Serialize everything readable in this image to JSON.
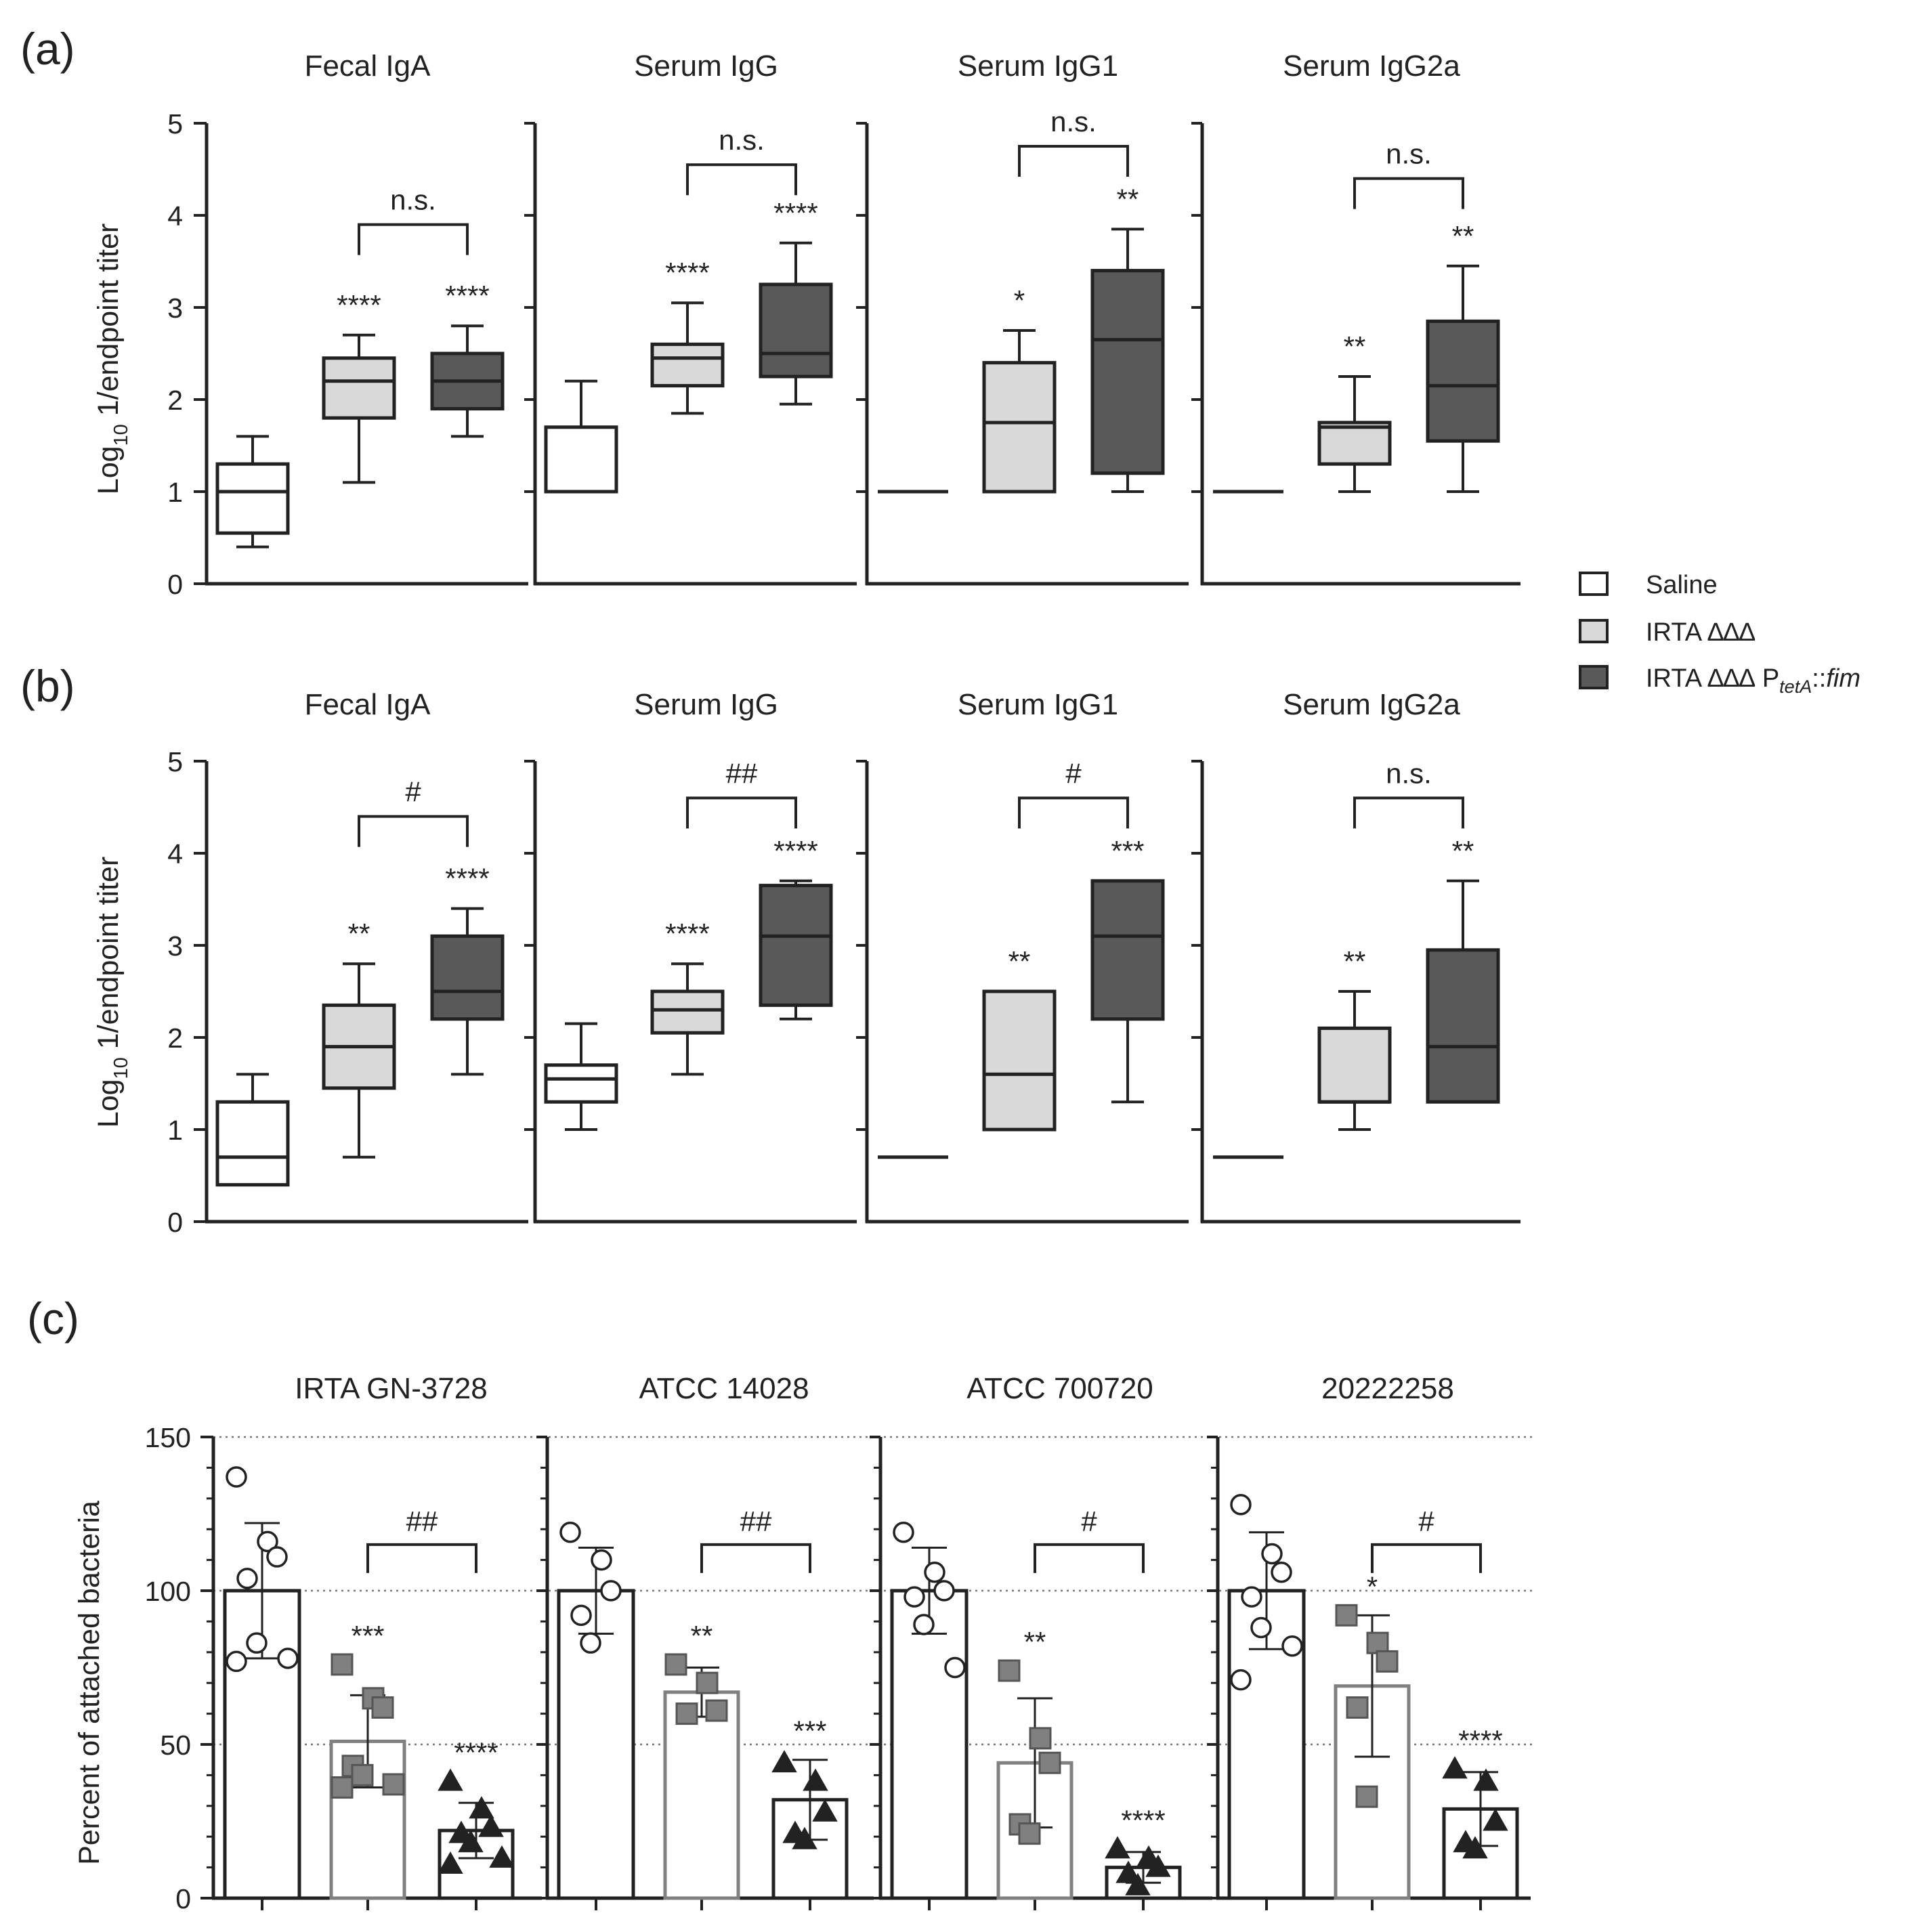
{
  "legend": {
    "items": [
      {
        "id": "saline",
        "label": "Saline",
        "color": "#ffffff"
      },
      {
        "id": "delta",
        "label": "IRTA ∆∆∆",
        "color": "#d9d9d9"
      },
      {
        "id": "fim",
        "label": "IRTA ∆∆∆ P",
        "sub": "tetA",
        "suffix": "::",
        "suffix_it": "fim",
        "color": "#595959"
      }
    ]
  },
  "chart_data": [
    {
      "id": "a",
      "letter": "(a)",
      "type": "box",
      "ylabel": "Log",
      "ylabel_sub": "10",
      "ylabel_rest": " 1/endpoint titer",
      "ylim": [
        0,
        5
      ],
      "yticks": [
        "0",
        "1",
        "2",
        "3",
        "4",
        "5"
      ],
      "panels": [
        {
          "title": "Fecal IgA",
          "boxes": [
            {
              "group": "Saline",
              "min": 0.4,
              "q1": 0.55,
              "median": 1.0,
              "q3": 1.3,
              "max": 1.6
            },
            {
              "group": "IRTA ∆∆∆",
              "min": 1.1,
              "q1": 1.8,
              "median": 2.2,
              "q3": 2.45,
              "max": 2.7,
              "sig": "****"
            },
            {
              "group": "IRTA ∆∆∆ PtetA::fim",
              "min": 1.6,
              "q1": 1.9,
              "median": 2.2,
              "q3": 2.5,
              "max": 2.8,
              "sig": "****"
            }
          ],
          "bracket": {
            "label": "n.s.",
            "y": 3.9
          }
        },
        {
          "title": "Serum IgG",
          "boxes": [
            {
              "group": "Saline",
              "min": 1.0,
              "q1": 1.0,
              "median": 1.0,
              "q3": 1.7,
              "max": 2.2
            },
            {
              "group": "IRTA ∆∆∆",
              "min": 1.85,
              "q1": 2.15,
              "median": 2.45,
              "q3": 2.6,
              "max": 3.05,
              "sig": "****"
            },
            {
              "group": "IRTA ∆∆∆ PtetA::fim",
              "min": 1.95,
              "q1": 2.25,
              "median": 2.5,
              "q3": 3.25,
              "max": 3.7,
              "sig": "****"
            }
          ],
          "bracket": {
            "label": "n.s.",
            "y": 4.55
          }
        },
        {
          "title": "Serum IgG1",
          "boxes": [
            {
              "group": "Saline",
              "min": 1.0,
              "q1": 1.0,
              "median": 1.0,
              "q3": 1.0,
              "max": 1.0
            },
            {
              "group": "IRTA ∆∆∆",
              "min": 1.0,
              "q1": 1.0,
              "median": 1.75,
              "q3": 2.4,
              "max": 2.75,
              "sig": "*"
            },
            {
              "group": "IRTA ∆∆∆ PtetA::fim",
              "min": 1.0,
              "q1": 1.2,
              "median": 2.65,
              "q3": 3.4,
              "max": 3.85,
              "sig": "**"
            }
          ],
          "bracket": {
            "label": "n.s.",
            "y": 4.75
          }
        },
        {
          "title": "Serum IgG2a",
          "boxes": [
            {
              "group": "Saline",
              "min": 1.0,
              "q1": 1.0,
              "median": 1.0,
              "q3": 1.0,
              "max": 1.0
            },
            {
              "group": "IRTA ∆∆∆",
              "min": 1.0,
              "q1": 1.3,
              "median": 1.7,
              "q3": 1.75,
              "max": 2.25,
              "sig": "**"
            },
            {
              "group": "IRTA ∆∆∆ PtetA::fim",
              "min": 1.0,
              "q1": 1.55,
              "median": 2.15,
              "q3": 2.85,
              "max": 3.45,
              "sig": "**"
            }
          ],
          "bracket": {
            "label": "n.s.",
            "y": 4.4
          }
        }
      ]
    },
    {
      "id": "b",
      "letter": "(b)",
      "type": "box",
      "ylabel": "Log",
      "ylabel_sub": "10",
      "ylabel_rest": " 1/endpoint titer",
      "ylim": [
        0,
        5
      ],
      "yticks": [
        "0",
        "1",
        "2",
        "3",
        "4",
        "5"
      ],
      "panels": [
        {
          "title": "Fecal IgA",
          "boxes": [
            {
              "group": "Saline",
              "min": 0.4,
              "q1": 0.4,
              "median": 0.7,
              "q3": 1.3,
              "max": 1.6
            },
            {
              "group": "IRTA ∆∆∆",
              "min": 0.7,
              "q1": 1.45,
              "median": 1.9,
              "q3": 2.35,
              "max": 2.8,
              "sig": "**"
            },
            {
              "group": "IRTA ∆∆∆ PtetA::fim",
              "min": 1.6,
              "q1": 2.2,
              "median": 2.5,
              "q3": 3.1,
              "max": 3.4,
              "sig": "****"
            }
          ],
          "bracket": {
            "label": "#",
            "y": 4.4
          }
        },
        {
          "title": "Serum IgG",
          "boxes": [
            {
              "group": "Saline",
              "min": 1.0,
              "q1": 1.3,
              "median": 1.55,
              "q3": 1.7,
              "max": 2.15
            },
            {
              "group": "IRTA ∆∆∆",
              "min": 1.6,
              "q1": 2.05,
              "median": 2.3,
              "q3": 2.5,
              "max": 2.8,
              "sig": "****"
            },
            {
              "group": "IRTA ∆∆∆ PtetA::fim",
              "min": 2.2,
              "q1": 2.35,
              "median": 3.1,
              "q3": 3.65,
              "max": 3.7,
              "sig": "****"
            }
          ],
          "bracket": {
            "label": "##",
            "y": 4.6
          }
        },
        {
          "title": "Serum IgG1",
          "boxes": [
            {
              "group": "Saline",
              "min": 0.7,
              "q1": 0.7,
              "median": 0.7,
              "q3": 0.7,
              "max": 0.7
            },
            {
              "group": "IRTA ∆∆∆",
              "min": 1.0,
              "q1": 1.0,
              "median": 1.6,
              "q3": 2.5,
              "max": 2.5,
              "sig": "**"
            },
            {
              "group": "IRTA ∆∆∆ PtetA::fim",
              "min": 1.3,
              "q1": 2.2,
              "median": 3.1,
              "q3": 3.7,
              "max": 3.7,
              "sig": "***"
            }
          ],
          "bracket": {
            "label": "#",
            "y": 4.6
          }
        },
        {
          "title": "Serum IgG2a",
          "boxes": [
            {
              "group": "Saline",
              "min": 0.7,
              "q1": 0.7,
              "median": 0.7,
              "q3": 0.7,
              "max": 0.7
            },
            {
              "group": "IRTA ∆∆∆",
              "min": 1.0,
              "q1": 1.3,
              "median": 1.3,
              "q3": 2.1,
              "max": 2.5,
              "sig": "**"
            },
            {
              "group": "IRTA ∆∆∆ PtetA::fim",
              "min": 1.3,
              "q1": 1.3,
              "median": 1.9,
              "q3": 2.95,
              "max": 3.7,
              "sig": "**"
            }
          ],
          "bracket": {
            "label": "n.s.",
            "y": 4.6
          }
        }
      ]
    },
    {
      "id": "c",
      "letter": "(c)",
      "type": "bar",
      "ylabel": "Percent of attached bacteria",
      "ylim": [
        0,
        150
      ],
      "yticks": [
        "0",
        "50",
        "100",
        "150"
      ],
      "panels": [
        {
          "title": "IRTA GN-3728",
          "bars": [
            {
              "group": "Saline",
              "mean": 100,
              "sd": 22,
              "points": [
                137,
                116,
                111,
                104,
                83,
                78,
                77
              ],
              "marker": "circle"
            },
            {
              "group": "IRTA ∆∆∆",
              "mean": 51,
              "sd": 15,
              "points": [
                76,
                65,
                62,
                43,
                40,
                37,
                36
              ],
              "marker": "square",
              "sig": "***"
            },
            {
              "group": "IRTA ∆∆∆ PtetA::fim",
              "mean": 22,
              "sd": 9,
              "points": [
                38,
                29,
                23,
                21,
                18,
                13,
                11
              ],
              "marker": "triangle",
              "sig": "****"
            }
          ],
          "bracket": {
            "label": "##",
            "y": 115
          }
        },
        {
          "title": "ATCC 14028",
          "bars": [
            {
              "group": "Saline",
              "mean": 100,
              "sd": 14,
              "points": [
                119,
                110,
                100,
                92,
                83
              ],
              "marker": "circle"
            },
            {
              "group": "IRTA ∆∆∆",
              "mean": 67,
              "sd": 8,
              "points": [
                76,
                70,
                61,
                60
              ],
              "marker": "square",
              "sig": "**"
            },
            {
              "group": "IRTA ∆∆∆ PtetA::fim",
              "mean": 32,
              "sd": 13,
              "points": [
                44,
                38,
                28,
                21,
                19
              ],
              "marker": "triangle",
              "sig": "***"
            }
          ],
          "bracket": {
            "label": "##",
            "y": 115
          }
        },
        {
          "title": "ATCC 700720",
          "bars": [
            {
              "group": "Saline",
              "mean": 100,
              "sd": 14,
              "points": [
                119,
                106,
                100,
                98,
                89,
                75
              ],
              "marker": "circle"
            },
            {
              "group": "IRTA ∆∆∆",
              "mean": 44,
              "sd": 21,
              "points": [
                74,
                52,
                44,
                24,
                21
              ],
              "marker": "square",
              "sig": "**"
            },
            {
              "group": "IRTA ∆∆∆ PtetA::fim",
              "mean": 10,
              "sd": 5,
              "points": [
                16,
                13,
                10,
                8,
                4
              ],
              "marker": "triangle",
              "sig": "****"
            }
          ],
          "bracket": {
            "label": "#",
            "y": 115
          }
        },
        {
          "title": "20222258",
          "bars": [
            {
              "group": "Saline",
              "mean": 100,
              "sd": 19,
              "points": [
                128,
                112,
                106,
                98,
                88,
                82,
                71
              ],
              "marker": "circle"
            },
            {
              "group": "IRTA ∆∆∆",
              "mean": 69,
              "sd": 23,
              "points": [
                92,
                83,
                77,
                62,
                33
              ],
              "marker": "square",
              "sig": "*"
            },
            {
              "group": "IRTA ∆∆∆ PtetA::fim",
              "mean": 29,
              "sd": 12,
              "points": [
                42,
                38,
                25,
                18,
                16
              ],
              "marker": "triangle",
              "sig": "****"
            }
          ],
          "bracket": {
            "label": "#",
            "y": 115
          }
        }
      ]
    }
  ]
}
